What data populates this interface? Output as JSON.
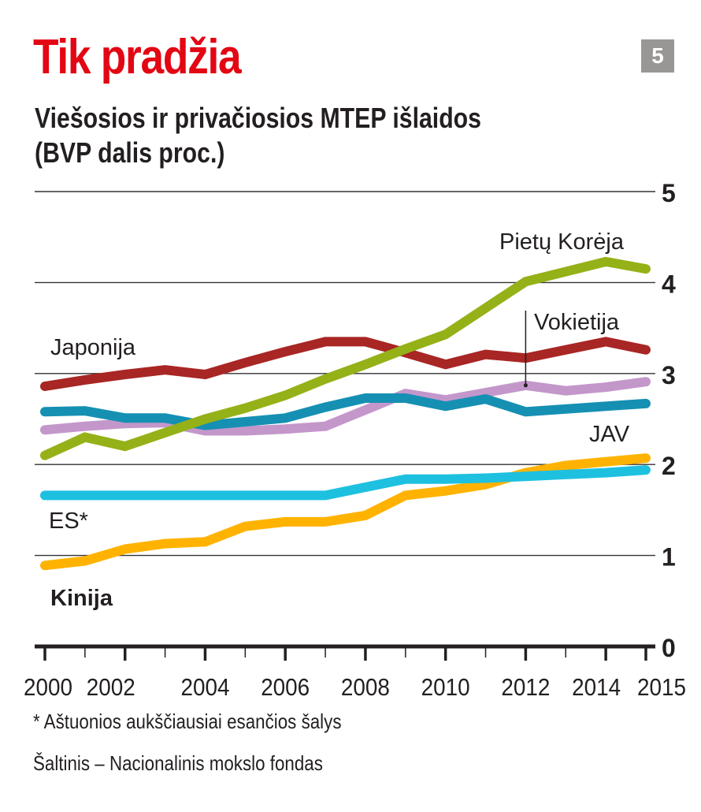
{
  "header": {
    "title": "Tik pradžia",
    "subtitle_line1": "Viešosios ir privačiosios MTEP išlaidos",
    "subtitle_line2": "(BVP dalis proc.)",
    "badge": "5"
  },
  "footer": {
    "footnote": "* Aštuonios aukščiausiai esančios šalys",
    "source": "Šaltinis – Nacionalinis mokslo fondas"
  },
  "chart_data": {
    "type": "line",
    "title": "Viešosios ir privačiosios MTEP išlaidos (BVP dalis proc.)",
    "xlabel": "",
    "ylabel": "",
    "x": [
      2000,
      2001,
      2002,
      2003,
      2004,
      2005,
      2006,
      2007,
      2008,
      2009,
      2010,
      2011,
      2012,
      2013,
      2014,
      2015
    ],
    "x_tick_labels": [
      "2000",
      "2002",
      "2004",
      "2006",
      "2008",
      "2010",
      "2012",
      "2014",
      "2015"
    ],
    "y_ticks": [
      0,
      1,
      2,
      3,
      4,
      5
    ],
    "ylim": [
      0,
      5
    ],
    "xlim": [
      2000,
      2015
    ],
    "grid": true,
    "legend": "inline labels",
    "series": [
      {
        "name": "Japonija",
        "color": "#a82624",
        "values": [
          2.86,
          2.93,
          2.99,
          3.04,
          2.99,
          3.12,
          3.24,
          3.35,
          3.35,
          3.23,
          3.1,
          3.21,
          3.17,
          3.26,
          3.35,
          3.26
        ]
      },
      {
        "name": "Pietų Korėja",
        "color": "#95b118",
        "values": [
          2.1,
          2.3,
          2.2,
          2.35,
          2.5,
          2.62,
          2.76,
          2.94,
          3.1,
          3.27,
          3.43,
          3.72,
          4.01,
          4.12,
          4.23,
          4.15
        ]
      },
      {
        "name": "Vokietija",
        "color": "#c497cb",
        "values": [
          2.38,
          2.42,
          2.45,
          2.46,
          2.37,
          2.37,
          2.39,
          2.42,
          2.6,
          2.78,
          2.71,
          2.79,
          2.87,
          2.81,
          2.85,
          2.91
        ]
      },
      {
        "name": "JAV",
        "color": "#1590b3",
        "values": [
          2.58,
          2.59,
          2.51,
          2.51,
          2.43,
          2.47,
          2.51,
          2.63,
          2.73,
          2.73,
          2.64,
          2.72,
          2.58,
          2.61,
          2.64,
          2.67
        ]
      },
      {
        "name": "ES*",
        "color": "#1ec0e0",
        "values": [
          1.66,
          1.66,
          1.66,
          1.66,
          1.66,
          1.66,
          1.66,
          1.66,
          1.75,
          1.84,
          1.84,
          1.85,
          1.87,
          1.89,
          1.91,
          1.94
        ]
      },
      {
        "name": "Kinija",
        "color": "#ffb300",
        "values": [
          0.89,
          0.94,
          1.07,
          1.13,
          1.15,
          1.32,
          1.37,
          1.37,
          1.44,
          1.66,
          1.71,
          1.78,
          1.91,
          1.99,
          2.03,
          2.07
        ]
      }
    ],
    "labels": [
      {
        "series": "Japonija",
        "text": "Japonija",
        "bold": false
      },
      {
        "series": "Pietų Korėja",
        "text": "Pietų Korėja",
        "bold": false
      },
      {
        "series": "Vokietija",
        "text": "Vokietija",
        "bold": false
      },
      {
        "series": "JAV",
        "text": "JAV",
        "bold": false
      },
      {
        "series": "ES*",
        "text": "ES*",
        "bold": false
      },
      {
        "series": "Kinija",
        "text": "Kinija",
        "bold": true
      }
    ],
    "annotation": {
      "series": "Vokietija",
      "year": 2012,
      "text": "Vokietija"
    }
  }
}
